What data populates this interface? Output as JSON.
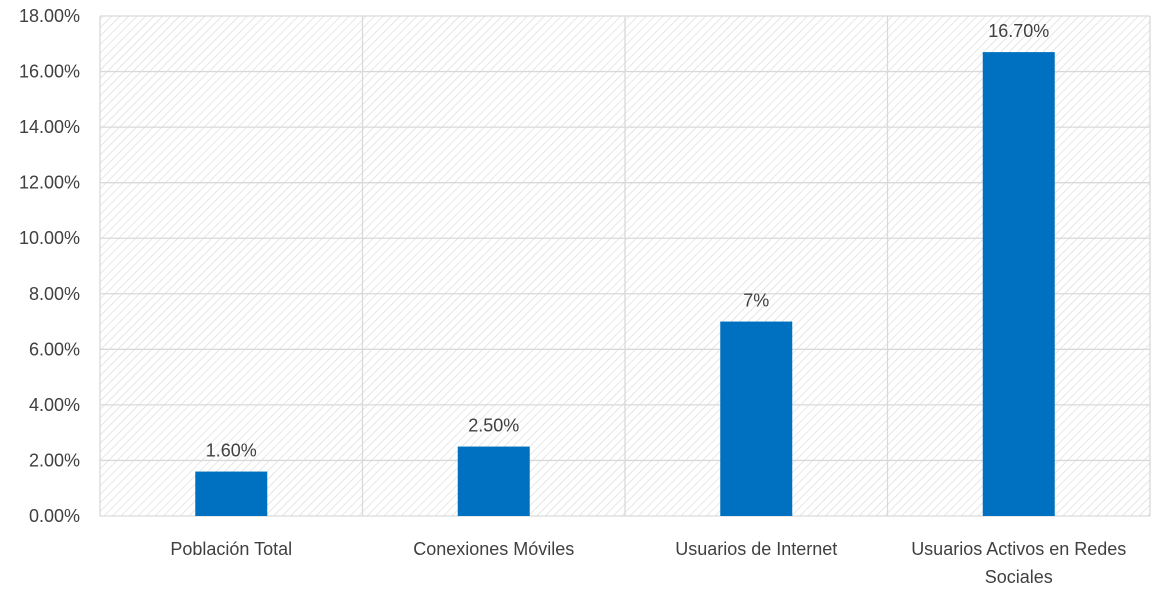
{
  "chart_data": {
    "type": "bar",
    "categories": [
      [
        "Población Total"
      ],
      [
        "Conexiones Móviles"
      ],
      [
        "Usuarios de Internet"
      ],
      [
        "Usuarios Activos en Redes",
        "Sociales"
      ]
    ],
    "values": [
      1.6,
      2.5,
      7,
      16.7
    ],
    "data_labels": [
      "1.60%",
      "2.50%",
      "7%",
      "16.70%"
    ],
    "ylim": [
      0,
      18
    ],
    "y_ticks": [
      0,
      2,
      4,
      6,
      8,
      10,
      12,
      14,
      16,
      18
    ],
    "y_tick_labels": [
      "0.00%",
      "2.00%",
      "4.00%",
      "6.00%",
      "8.00%",
      "10.00%",
      "12.00%",
      "14.00%",
      "16.00%",
      "18.00%"
    ],
    "grid": true,
    "legend": "none",
    "colors": {
      "bar": "#0070C0",
      "grid": "#D9D9D9",
      "hatch": "#D9D9D9",
      "text": "#404040"
    }
  }
}
